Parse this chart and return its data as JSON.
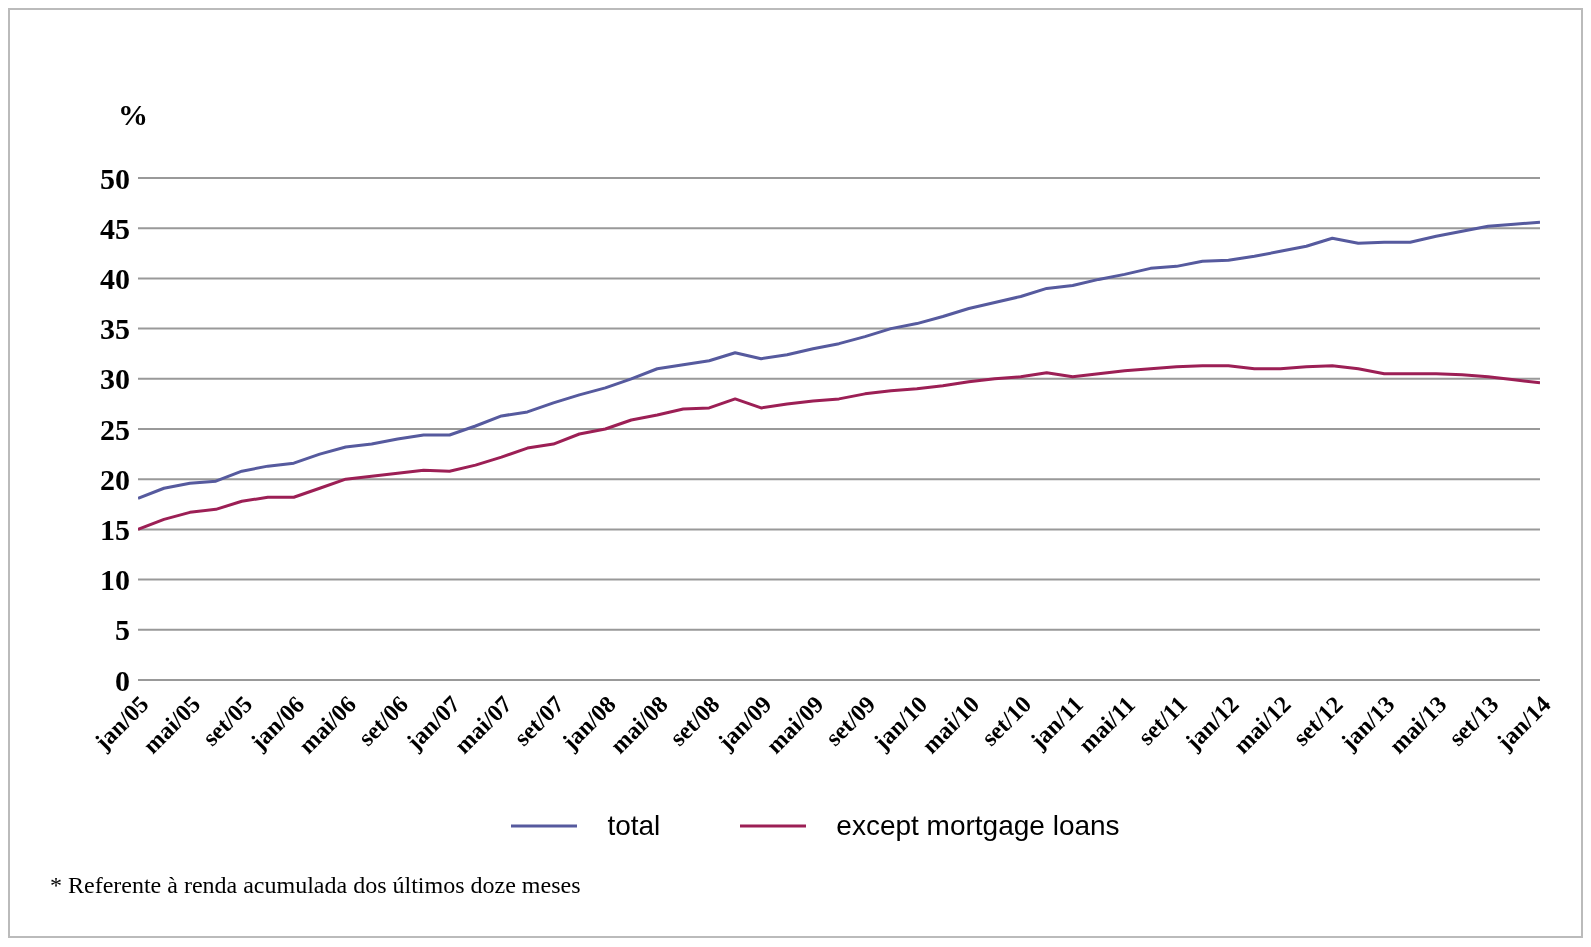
{
  "chart_data": {
    "type": "line",
    "ylabel": "%",
    "categories": [
      "jan/05",
      null,
      "mai/05",
      null,
      "set/05",
      null,
      "jan/06",
      null,
      "mai/06",
      null,
      "set/06",
      null,
      "jan/07",
      null,
      "mai/07",
      null,
      "set/07",
      null,
      "jan/08",
      null,
      "mai/08",
      null,
      "set/08",
      null,
      "jan/09",
      null,
      "mai/09",
      null,
      "set/09",
      null,
      "jan/10",
      null,
      "mai/10",
      null,
      "set/10",
      null,
      "jan/11",
      null,
      "mai/11",
      null,
      "set/11",
      null,
      "jan/12",
      null,
      "mai/12",
      null,
      "set/12",
      null,
      "jan/13",
      null,
      "mai/13",
      null,
      "set/13",
      null,
      "jan/14"
    ],
    "series": [
      {
        "name": "total",
        "color": "#565a9e",
        "values": [
          18.1,
          19.1,
          19.6,
          19.8,
          20.8,
          21.3,
          21.6,
          22.5,
          23.2,
          23.5,
          24,
          24.4,
          24.4,
          25.3,
          26.3,
          26.7,
          27.6,
          28.4,
          29.1,
          30,
          31,
          31.4,
          31.8,
          32.6,
          32,
          32.4,
          33,
          33.5,
          34.2,
          35,
          35.5,
          36.2,
          37,
          37.6,
          38.2,
          39,
          39.3,
          39.9,
          40.4,
          41,
          41.2,
          41.7,
          41.8,
          42.2,
          42.7,
          43.2,
          44,
          43.5,
          43.6,
          43.6,
          44.2,
          44.7,
          45.2,
          45.4,
          45.6
        ]
      },
      {
        "name": "except mortgage  loans",
        "color": "#9c1f55",
        "values": [
          15,
          16,
          16.7,
          17,
          17.8,
          18.2,
          18.2,
          19.1,
          20,
          20.3,
          20.6,
          20.9,
          20.8,
          21.4,
          22.2,
          23.1,
          23.5,
          24.5,
          25,
          25.9,
          26.4,
          27,
          27.1,
          28,
          27.1,
          27.5,
          27.8,
          28,
          28.5,
          28.8,
          29,
          29.3,
          29.7,
          30,
          30.2,
          30.6,
          30.2,
          30.5,
          30.8,
          31,
          31.2,
          31.3,
          31.3,
          31,
          31,
          31.2,
          31.3,
          31,
          30.5,
          30.5,
          30.5,
          30.4,
          30.2,
          29.9,
          29.6
        ]
      }
    ],
    "ylim": [
      0,
      50
    ],
    "yticks": [
      0,
      5,
      10,
      15,
      20,
      25,
      30,
      35,
      40,
      45,
      50
    ],
    "grid": "y",
    "legend": "bottom",
    "marker": "none",
    "line_style": "solid",
    "annotations": [
      "* Referente à renda acumulada dos últimos doze meses"
    ]
  }
}
